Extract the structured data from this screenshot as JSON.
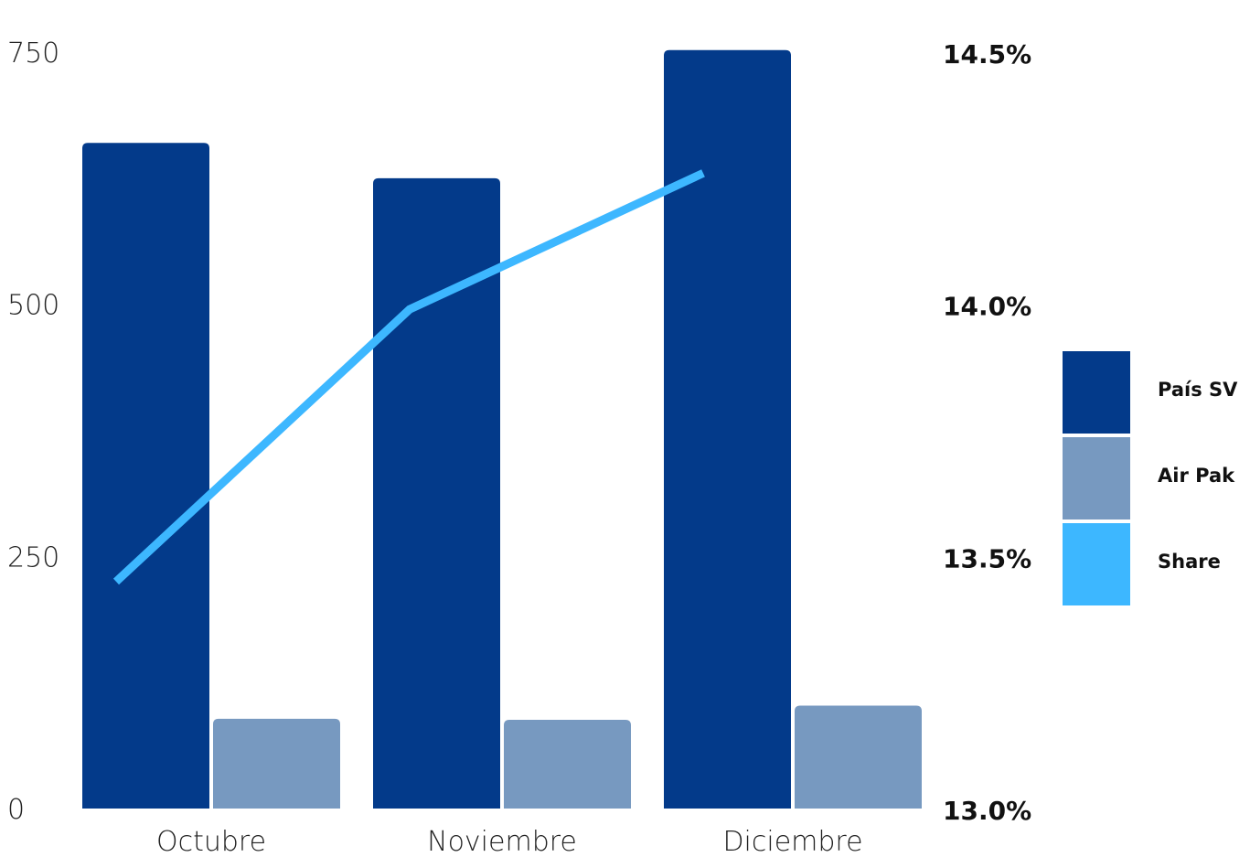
{
  "chart_data": {
    "type": "bar",
    "categories": [
      "Octubre",
      "Noviembre",
      "Diciembre"
    ],
    "series": [
      {
        "name": "País SV",
        "type": "bar",
        "axis": "left",
        "color": "#033A8A",
        "values": [
          660,
          625,
          752
        ]
      },
      {
        "name": "Air Pak",
        "type": "bar",
        "axis": "left",
        "color": "#7799C0",
        "values": [
          89,
          88,
          102
        ]
      },
      {
        "name": "Share",
        "type": "line",
        "axis": "right",
        "color": "#3DB7FF",
        "values": [
          13.45,
          13.99,
          14.26
        ]
      }
    ],
    "y_left": {
      "min": 0,
      "max": 750,
      "ticks": [
        "0",
        "250",
        "500",
        "750"
      ]
    },
    "y_right": {
      "min": 13.0,
      "max": 14.5,
      "ticks": [
        "13.0%",
        "13.5%",
        "14.0%",
        "14.5%"
      ]
    },
    "grid": false,
    "legend_position": "right"
  },
  "legend": {
    "items": [
      {
        "label": "País SV",
        "color": "#033A8A"
      },
      {
        "label": "Air Pak",
        "color": "#7799C0"
      },
      {
        "label": "Share",
        "color": "#3DB7FF"
      }
    ]
  }
}
